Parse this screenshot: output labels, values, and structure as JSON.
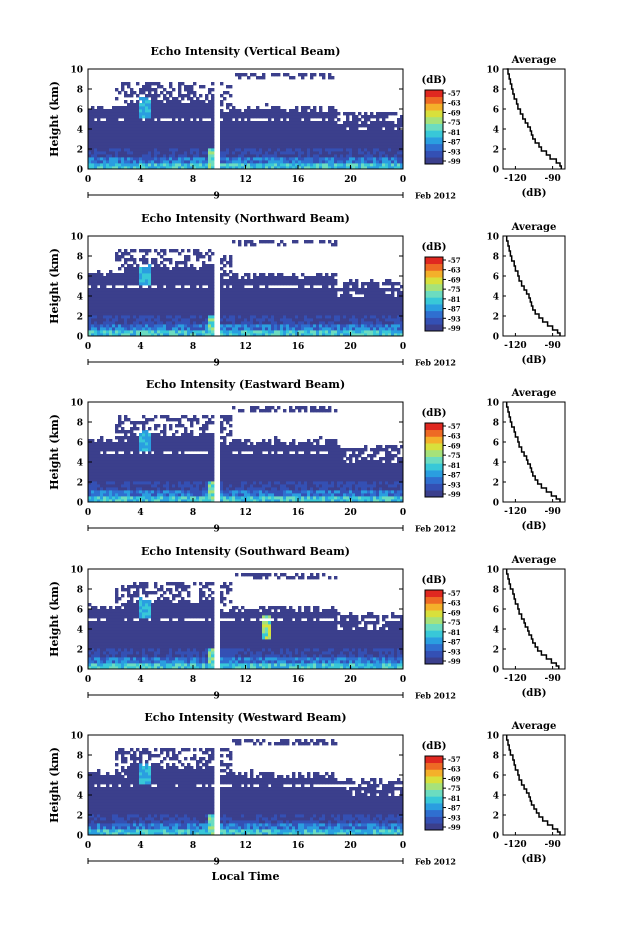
{
  "figure": {
    "xlabel": "Local Time",
    "date_label": "Feb 2012",
    "day_tick_label": "9",
    "colorbar_unit": "(dB)",
    "colorbar_ticks": [
      "-57",
      "-63",
      "-69",
      "-75",
      "-81",
      "-87",
      "-93",
      "-99"
    ],
    "colormap": [
      "#3b3f8c",
      "#3450b4",
      "#2f6fd0",
      "#2a9ee0",
      "#38c8d8",
      "#6cdcc0",
      "#a6e27a",
      "#d8e03c",
      "#f4b02a",
      "#ee6a24",
      "#e02820"
    ],
    "background_color": "#3b3f8c"
  },
  "chart_data": [
    {
      "type": "heatmap",
      "title": "Echo Intensity (Vertical Beam)",
      "ylabel": "Height (km)",
      "xlim": [
        0,
        24
      ],
      "ylim": [
        0,
        10
      ],
      "x_ticks": [
        "0",
        "4",
        "8",
        "12",
        "16",
        "20",
        "0"
      ],
      "y_ticks": [
        "0",
        "2",
        "4",
        "6",
        "8",
        "10"
      ],
      "avg_title": "Average",
      "avg_xlabel": "(dB)",
      "avg_x_ticks": [
        "-120",
        "-90"
      ],
      "avg_xlim": [
        -130,
        -80
      ],
      "avg_profile": [
        [
          -83,
          0.0
        ],
        [
          -84,
          0.3
        ],
        [
          -87,
          0.6
        ],
        [
          -92,
          1.0
        ],
        [
          -95,
          1.4
        ],
        [
          -99,
          1.8
        ],
        [
          -101,
          2.2
        ],
        [
          -104,
          2.6
        ],
        [
          -106,
          3.0
        ],
        [
          -107,
          3.4
        ],
        [
          -108,
          3.8
        ],
        [
          -110,
          4.2
        ],
        [
          -112,
          4.6
        ],
        [
          -114,
          5.0
        ],
        [
          -116,
          5.5
        ],
        [
          -118,
          6.0
        ],
        [
          -119,
          6.5
        ],
        [
          -121,
          7.0
        ],
        [
          -122,
          7.5
        ],
        [
          -123,
          8.0
        ],
        [
          -124,
          8.5
        ],
        [
          -125,
          9.0
        ],
        [
          -126,
          9.5
        ],
        [
          -127,
          10.0
        ]
      ]
    },
    {
      "type": "heatmap",
      "title": "Echo Intensity (Northward Beam)",
      "ylabel": "Height (km)",
      "xlim": [
        0,
        24
      ],
      "ylim": [
        0,
        10
      ],
      "x_ticks": [
        "0",
        "4",
        "8",
        "12",
        "16",
        "20",
        "0"
      ],
      "y_ticks": [
        "0",
        "2",
        "4",
        "6",
        "8",
        "10"
      ],
      "avg_title": "Average",
      "avg_xlabel": "(dB)",
      "avg_x_ticks": [
        "-120",
        "-90"
      ],
      "avg_xlim": [
        -130,
        -80
      ],
      "avg_profile": [
        [
          -84,
          0.0
        ],
        [
          -86,
          0.3
        ],
        [
          -90,
          0.6
        ],
        [
          -94,
          1.0
        ],
        [
          -98,
          1.4
        ],
        [
          -101,
          1.8
        ],
        [
          -104,
          2.2
        ],
        [
          -106,
          2.6
        ],
        [
          -107,
          3.0
        ],
        [
          -108,
          3.4
        ],
        [
          -109,
          3.8
        ],
        [
          -111,
          4.2
        ],
        [
          -113,
          4.6
        ],
        [
          -115,
          5.0
        ],
        [
          -117,
          5.5
        ],
        [
          -118,
          6.0
        ],
        [
          -120,
          6.5
        ],
        [
          -121,
          7.0
        ],
        [
          -123,
          7.5
        ],
        [
          -124,
          8.0
        ],
        [
          -125,
          8.5
        ],
        [
          -126,
          9.0
        ],
        [
          -127,
          9.5
        ],
        [
          -127,
          10.0
        ]
      ]
    },
    {
      "type": "heatmap",
      "title": "Echo Intensity (Eastward Beam)",
      "ylabel": "Height (km)",
      "xlim": [
        0,
        24
      ],
      "ylim": [
        0,
        10
      ],
      "x_ticks": [
        "0",
        "4",
        "8",
        "12",
        "16",
        "20",
        "0"
      ],
      "y_ticks": [
        "0",
        "2",
        "4",
        "6",
        "8",
        "10"
      ],
      "avg_title": "Average",
      "avg_xlabel": "(dB)",
      "avg_x_ticks": [
        "-120",
        "-90"
      ],
      "avg_xlim": [
        -130,
        -80
      ],
      "avg_profile": [
        [
          -84,
          0.0
        ],
        [
          -87,
          0.3
        ],
        [
          -91,
          0.6
        ],
        [
          -95,
          1.0
        ],
        [
          -99,
          1.4
        ],
        [
          -102,
          1.8
        ],
        [
          -104,
          2.2
        ],
        [
          -106,
          2.6
        ],
        [
          -107,
          3.0
        ],
        [
          -108,
          3.4
        ],
        [
          -110,
          3.8
        ],
        [
          -111,
          4.2
        ],
        [
          -113,
          4.6
        ],
        [
          -115,
          5.0
        ],
        [
          -117,
          5.5
        ],
        [
          -118,
          6.0
        ],
        [
          -120,
          6.5
        ],
        [
          -121,
          7.0
        ],
        [
          -123,
          7.5
        ],
        [
          -124,
          8.0
        ],
        [
          -125,
          8.5
        ],
        [
          -126,
          9.0
        ],
        [
          -127,
          9.5
        ],
        [
          -127,
          10.0
        ]
      ]
    },
    {
      "type": "heatmap",
      "title": "Echo Intensity (Southward Beam)",
      "ylabel": "Height (km)",
      "xlim": [
        0,
        24
      ],
      "ylim": [
        0,
        10
      ],
      "x_ticks": [
        "0",
        "4",
        "8",
        "12",
        "16",
        "20",
        "0"
      ],
      "y_ticks": [
        "0",
        "2",
        "4",
        "6",
        "8",
        "10"
      ],
      "avg_title": "Average",
      "avg_xlabel": "(dB)",
      "avg_x_ticks": [
        "-120",
        "-90"
      ],
      "avg_xlim": [
        -130,
        -80
      ],
      "avg_profile": [
        [
          -85,
          0.0
        ],
        [
          -87,
          0.3
        ],
        [
          -91,
          0.6
        ],
        [
          -95,
          1.0
        ],
        [
          -99,
          1.4
        ],
        [
          -102,
          1.8
        ],
        [
          -104,
          2.2
        ],
        [
          -106,
          2.6
        ],
        [
          -107,
          3.0
        ],
        [
          -109,
          3.4
        ],
        [
          -110,
          3.8
        ],
        [
          -112,
          4.2
        ],
        [
          -113,
          4.6
        ],
        [
          -115,
          5.0
        ],
        [
          -117,
          5.5
        ],
        [
          -118,
          6.0
        ],
        [
          -120,
          6.5
        ],
        [
          -121,
          7.0
        ],
        [
          -122,
          7.5
        ],
        [
          -124,
          8.0
        ],
        [
          -125,
          8.5
        ],
        [
          -126,
          9.0
        ],
        [
          -127,
          9.5
        ],
        [
          -127,
          10.0
        ]
      ]
    },
    {
      "type": "heatmap",
      "title": "Echo Intensity (Westward Beam)",
      "ylabel": "Height (km)",
      "xlim": [
        0,
        24
      ],
      "ylim": [
        0,
        10
      ],
      "x_ticks": [
        "0",
        "4",
        "8",
        "12",
        "16",
        "20",
        "0"
      ],
      "y_ticks": [
        "0",
        "2",
        "4",
        "6",
        "8",
        "10"
      ],
      "avg_title": "Average",
      "avg_xlabel": "(dB)",
      "avg_x_ticks": [
        "-120",
        "-90"
      ],
      "avg_xlim": [
        -130,
        -80
      ],
      "avg_profile": [
        [
          -84,
          0.0
        ],
        [
          -86,
          0.3
        ],
        [
          -90,
          0.6
        ],
        [
          -94,
          1.0
        ],
        [
          -98,
          1.4
        ],
        [
          -101,
          1.8
        ],
        [
          -103,
          2.2
        ],
        [
          -105,
          2.6
        ],
        [
          -107,
          3.0
        ],
        [
          -108,
          3.4
        ],
        [
          -109,
          3.8
        ],
        [
          -111,
          4.2
        ],
        [
          -113,
          4.6
        ],
        [
          -115,
          5.0
        ],
        [
          -117,
          5.5
        ],
        [
          -118,
          6.0
        ],
        [
          -120,
          6.5
        ],
        [
          -121,
          7.0
        ],
        [
          -122,
          7.5
        ],
        [
          -124,
          8.0
        ],
        [
          -125,
          8.5
        ],
        [
          -126,
          9.0
        ],
        [
          -127,
          9.5
        ],
        [
          -127,
          10.0
        ]
      ]
    }
  ]
}
